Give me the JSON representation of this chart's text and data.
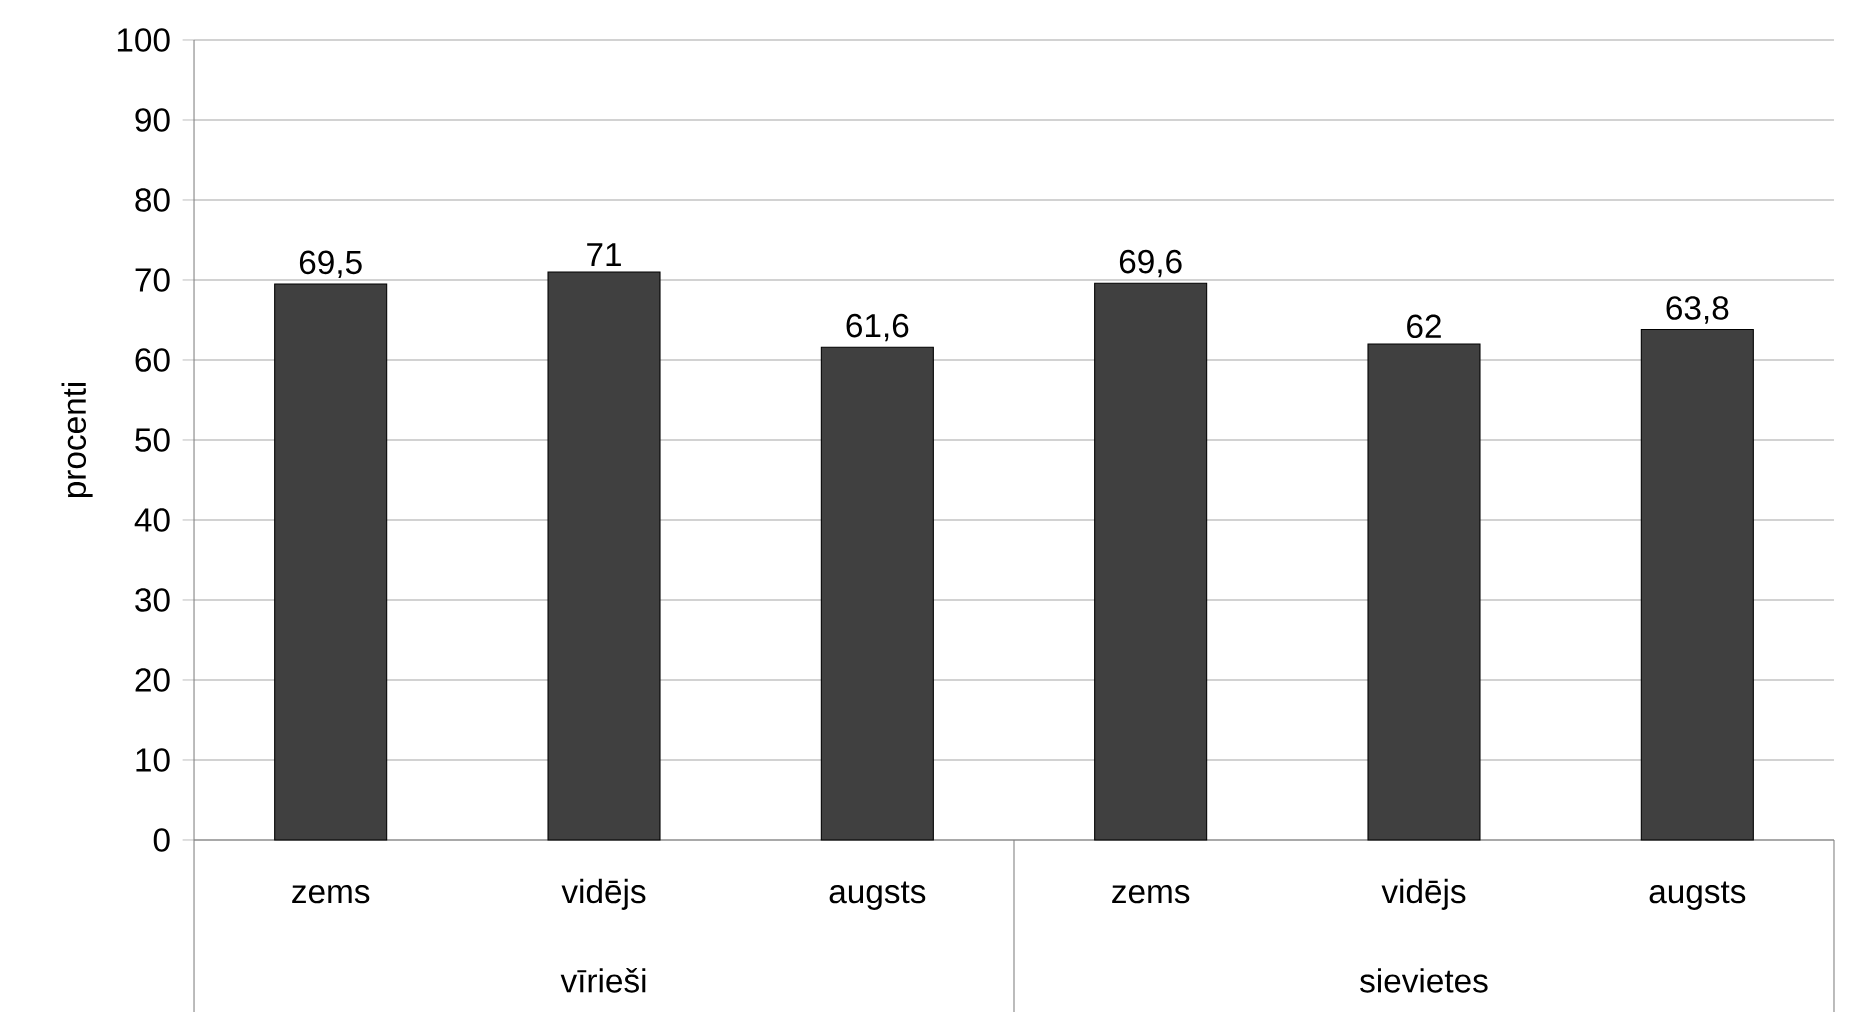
{
  "chart_data": {
    "type": "bar",
    "ylabel": "procenti",
    "categories": [
      "zems",
      "vidējs",
      "augsts",
      "zems",
      "vidējs",
      "augsts"
    ],
    "values": [
      69.5,
      71,
      61.6,
      69.6,
      62,
      63.8
    ],
    "value_labels": [
      "69,5",
      "71",
      "61,6",
      "69,6",
      "62",
      "63,8"
    ],
    "color": "#404040",
    "annotations": [
      "vīrieši",
      "sievietes"
    ],
    "ylim": [
      0,
      100
    ],
    "yticks": [
      0,
      10,
      20,
      30,
      40,
      50,
      60,
      70,
      80,
      90,
      100
    ],
    "grid": "y"
  }
}
